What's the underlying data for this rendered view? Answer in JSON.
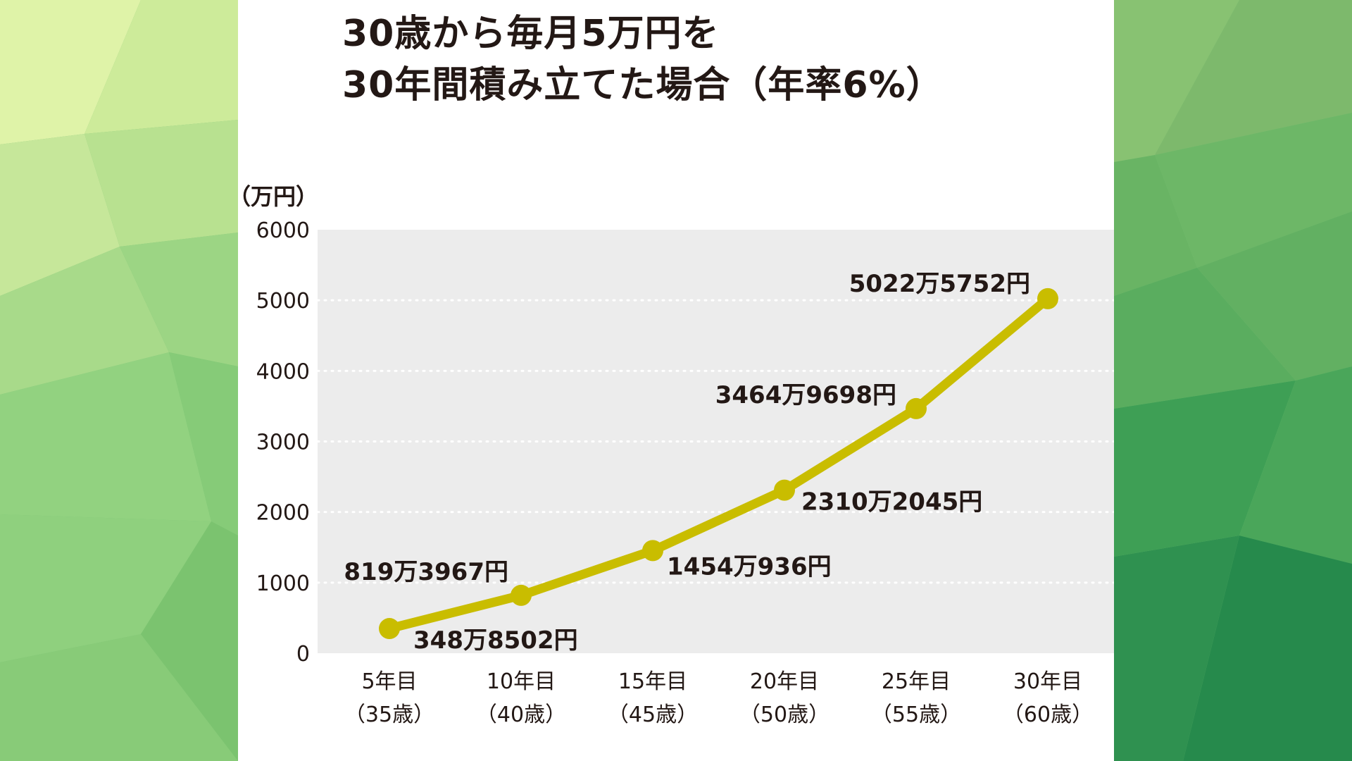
{
  "colors": {
    "line": "#c9bd00",
    "text": "#231815",
    "plot_bg": "#ececec",
    "grid": "#ffffff"
  },
  "chart_data": {
    "type": "line",
    "title_lines": [
      "30歳から毎月5万円を",
      "30年間積み立てた場合（年率6%）"
    ],
    "yunit": "（万円）",
    "ylim": [
      0,
      6000
    ],
    "yticks": [
      "0",
      "1000",
      "2000",
      "3000",
      "4000",
      "5000",
      "6000"
    ],
    "grid": "dotted horizontal",
    "categories": [
      {
        "year": "5年目",
        "age": "（35歳）"
      },
      {
        "year": "10年目",
        "age": "（40歳）"
      },
      {
        "year": "15年目",
        "age": "（45歳）"
      },
      {
        "year": "20年目",
        "age": "（50歳）"
      },
      {
        "year": "25年目",
        "age": "（55歳）"
      },
      {
        "year": "30年目",
        "age": "（60歳）"
      }
    ],
    "values": [
      348.8502,
      819.3967,
      1454.0936,
      2310.2045,
      3464.9698,
      5022.5752
    ],
    "labels": [
      "348万8502円",
      "819万3967円",
      "1454万936円",
      "2310万2045円",
      "3464万9698円",
      "5022万5752円"
    ]
  }
}
